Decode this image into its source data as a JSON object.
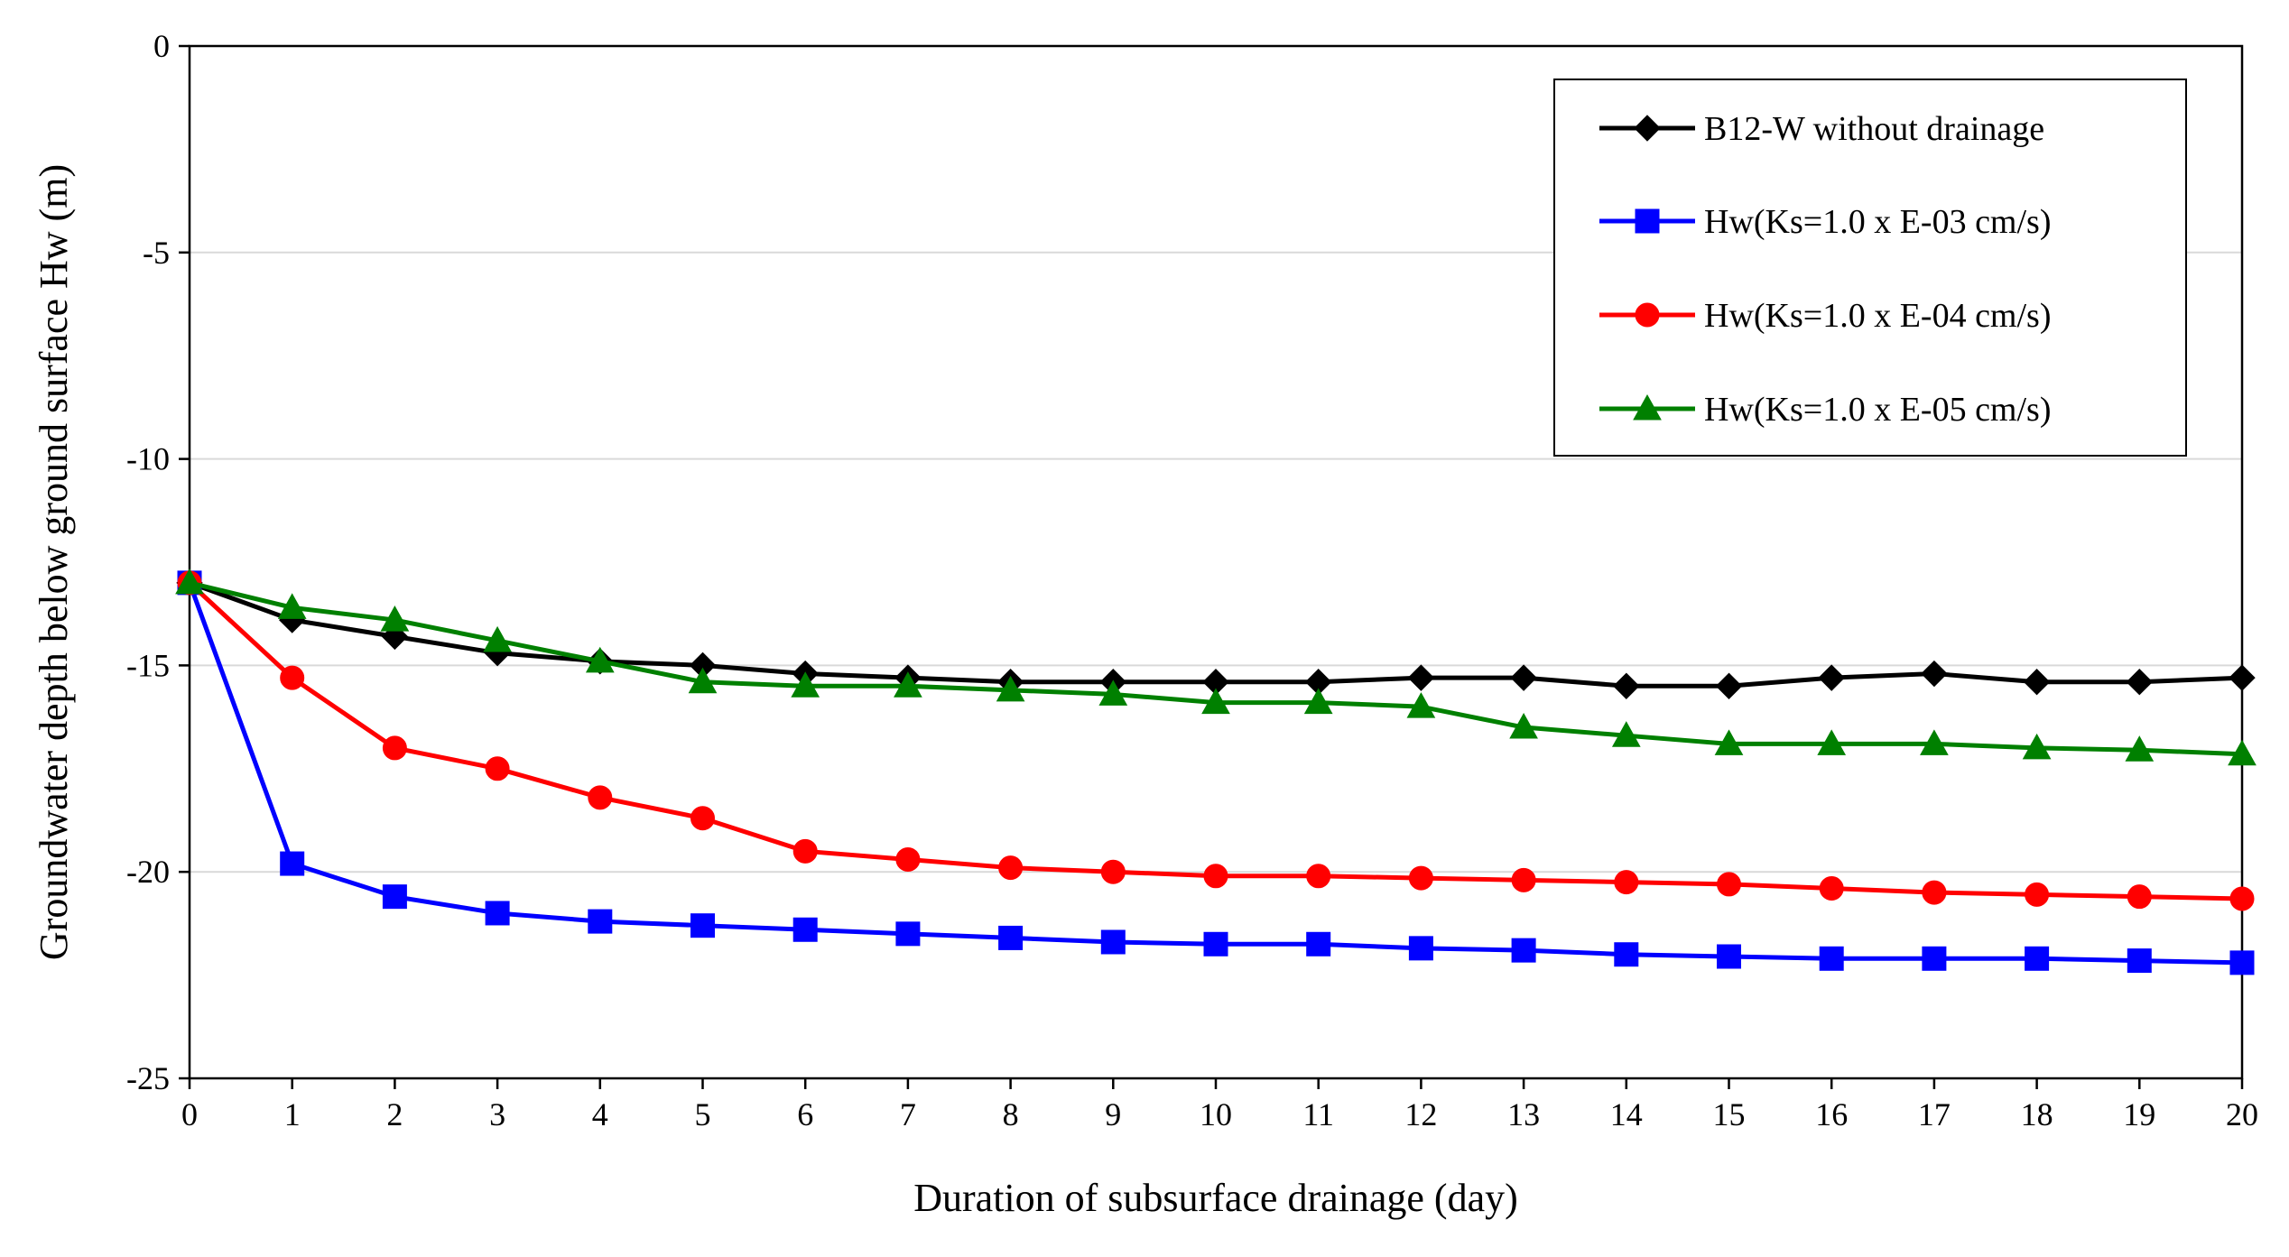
{
  "chart_data": {
    "type": "line",
    "title": "",
    "xlabel": "Duration of subsurface drainage (day)",
    "ylabel": "Groundwater depth below ground surface Hw (m)",
    "x": [
      0,
      1,
      2,
      3,
      4,
      5,
      6,
      7,
      8,
      9,
      10,
      11,
      12,
      13,
      14,
      15,
      16,
      17,
      18,
      19,
      20
    ],
    "xlim": [
      0,
      20
    ],
    "ylim": [
      -25,
      0
    ],
    "xticks": [
      0,
      1,
      2,
      3,
      4,
      5,
      6,
      7,
      8,
      9,
      10,
      11,
      12,
      13,
      14,
      15,
      16,
      17,
      18,
      19,
      20
    ],
    "yticks": [
      0,
      -5,
      -10,
      -15,
      -20,
      -25
    ],
    "grid": "horizontal",
    "legend_position": "top-right",
    "series": [
      {
        "name": "B12-W without drainage",
        "color": "#000000",
        "marker": "diamond",
        "values": [
          -13.0,
          -13.9,
          -14.3,
          -14.7,
          -14.9,
          -15.0,
          -15.2,
          -15.3,
          -15.4,
          -15.4,
          -15.4,
          -15.4,
          -15.3,
          -15.3,
          -15.5,
          -15.5,
          -15.3,
          -15.2,
          -15.4,
          -15.4,
          -15.3
        ]
      },
      {
        "name": "Hw(Ks=1.0 x E-03 cm/s)",
        "color": "#0000FF",
        "marker": "square",
        "values": [
          -13.0,
          -19.8,
          -20.6,
          -21.0,
          -21.2,
          -21.3,
          -21.4,
          -21.5,
          -21.6,
          -21.7,
          -21.75,
          -21.75,
          -21.85,
          -21.9,
          -22.0,
          -22.05,
          -22.1,
          -22.1,
          -22.1,
          -22.15,
          -22.2
        ]
      },
      {
        "name": "Hw(Ks=1.0 x E-04 cm/s)",
        "color": "#FF0000",
        "marker": "circle",
        "values": [
          -13.0,
          -15.3,
          -17.0,
          -17.5,
          -18.2,
          -18.7,
          -19.5,
          -19.7,
          -19.9,
          -20.0,
          -20.1,
          -20.1,
          -20.15,
          -20.2,
          -20.25,
          -20.3,
          -20.4,
          -20.5,
          -20.55,
          -20.6,
          -20.65
        ]
      },
      {
        "name": "Hw(Ks=1.0 x E-05 cm/s)",
        "color": "#008000",
        "marker": "triangle",
        "values": [
          -13.0,
          -13.6,
          -13.9,
          -14.4,
          -14.9,
          -15.4,
          -15.5,
          -15.5,
          -15.6,
          -15.7,
          -15.9,
          -15.9,
          -16.0,
          -16.5,
          -16.7,
          -16.9,
          -16.9,
          -16.9,
          -17.0,
          -17.05,
          -17.15
        ]
      }
    ]
  }
}
